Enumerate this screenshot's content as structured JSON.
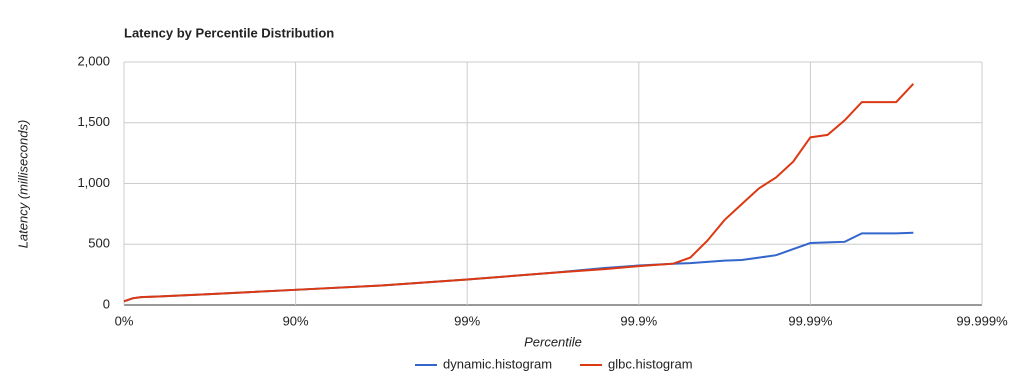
{
  "chart_data": {
    "type": "line",
    "title": "Latency by Percentile Distribution",
    "x_label": "Percentile",
    "y_label": "Latency (milliseconds)",
    "x": [
      0,
      0.05,
      0.1,
      0.2,
      0.5,
      1,
      1.5,
      2,
      2.5,
      2.8,
      3,
      3.2,
      3.3,
      3.4,
      3.5,
      3.6,
      3.7,
      3.8,
      3.9,
      4,
      4.1,
      4.2,
      4.3,
      4.4,
      4.5,
      4.6
    ],
    "series": [
      {
        "name": "dynamic.histogram",
        "color": "#3366cc",
        "values": [
          30,
          55,
          65,
          70,
          90,
          125,
          160,
          210,
          265,
          305,
          325,
          340,
          345,
          355,
          365,
          370,
          390,
          410,
          460,
          510,
          515,
          520,
          590,
          590,
          590,
          595
        ]
      },
      {
        "name": "glbc.histogram",
        "color": "#dc3912",
        "values": [
          30,
          55,
          65,
          70,
          90,
          125,
          160,
          210,
          265,
          295,
          320,
          340,
          390,
          530,
          700,
          830,
          960,
          1050,
          1180,
          1380,
          1400,
          1520,
          1670,
          1670,
          1670,
          1820
        ]
      }
    ],
    "xlim": [
      0,
      5
    ],
    "xticks": [
      {
        "value": 0,
        "label": "0%"
      },
      {
        "value": 1,
        "label": "90%"
      },
      {
        "value": 2,
        "label": "99%"
      },
      {
        "value": 3,
        "label": "99.9%"
      },
      {
        "value": 4,
        "label": "99.99%"
      },
      {
        "value": 5,
        "label": "99.999%"
      }
    ],
    "ylim": [
      0,
      2000
    ],
    "yticks": [
      0,
      500,
      {
        "value": 1000,
        "label": "1,000"
      },
      {
        "value": 1500,
        "label": "1,500"
      },
      {
        "value": 2000,
        "label": "2,000"
      }
    ],
    "grid": true,
    "legend": "bottom"
  }
}
